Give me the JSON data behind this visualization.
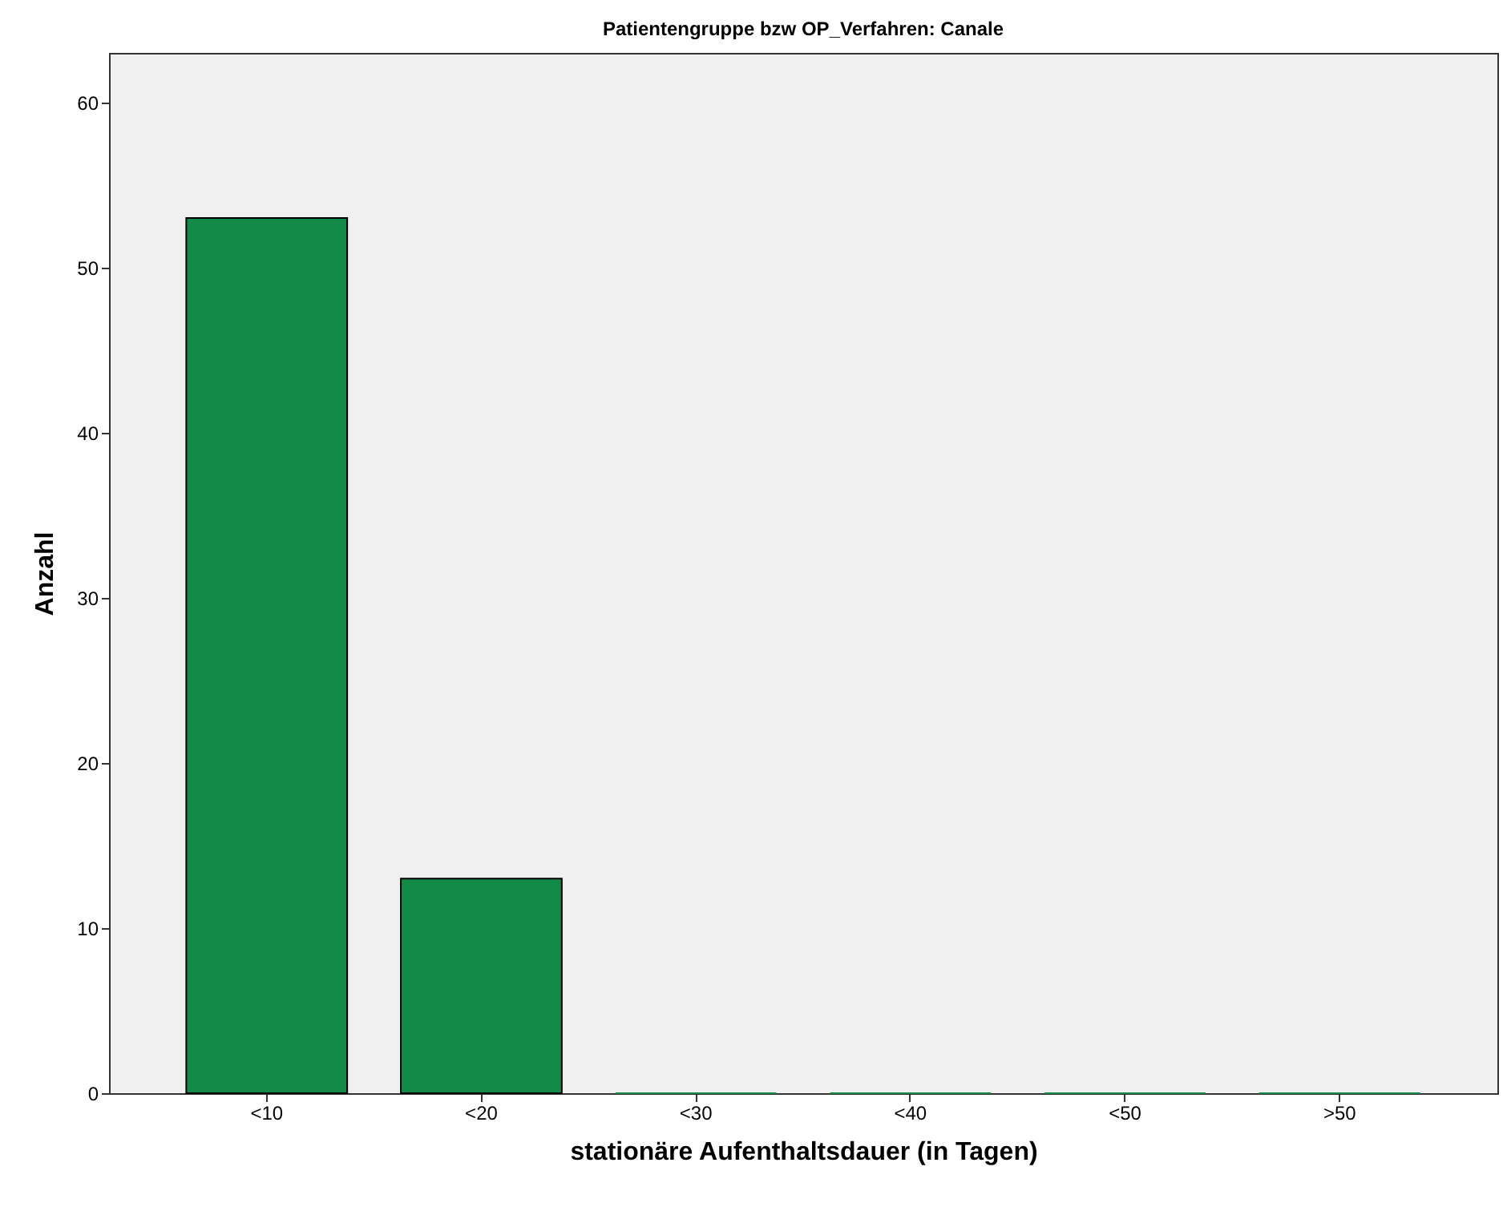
{
  "chart_data": {
    "type": "bar",
    "title": "Patientengruppe bzw OP_Verfahren: Canale",
    "xlabel": "stationäre Aufenthaltsdauer (in Tagen)",
    "ylabel": "Anzahl",
    "categories": [
      "<10",
      "<20",
      "<30",
      "<40",
      "<50",
      ">50"
    ],
    "values": [
      53,
      13,
      0,
      0,
      0,
      0
    ],
    "color": "#138a47",
    "ylim": [
      0,
      63
    ],
    "yticks": [
      0,
      10,
      20,
      30,
      40,
      50,
      60
    ],
    "grid": false
  }
}
